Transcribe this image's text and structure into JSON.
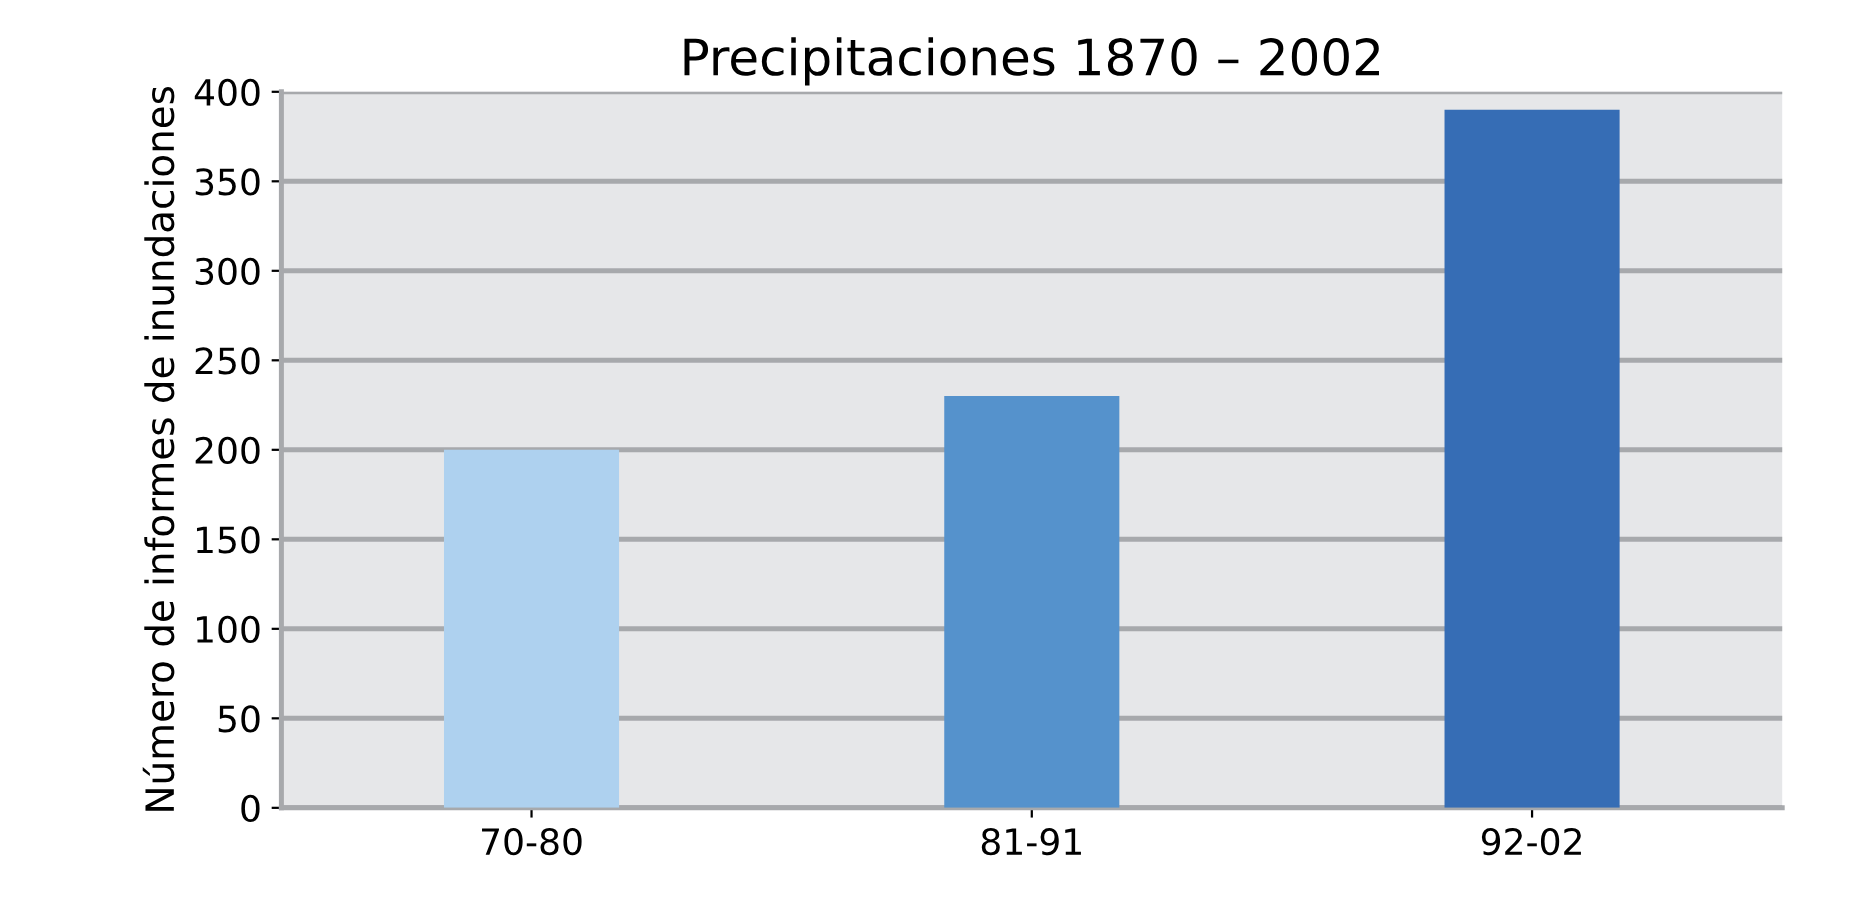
{
  "chart_data": {
    "type": "bar",
    "title": "Precipitaciones 1870 – 2002",
    "ylabel": "Número de informes de inundaciones",
    "categories": [
      "70-80",
      "81-91",
      "92-02"
    ],
    "values": [
      200,
      230,
      390
    ],
    "colors": [
      "#aed1ef",
      "#5592cc",
      "#366db5"
    ],
    "ylim": [
      0,
      400
    ],
    "yticks": [
      0,
      50,
      100,
      150,
      200,
      250,
      300,
      350,
      400
    ],
    "grid": "y",
    "legend": false
  }
}
